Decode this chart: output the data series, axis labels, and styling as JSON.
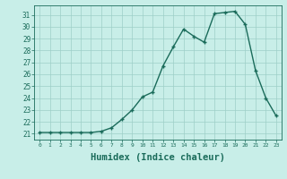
{
  "x": [
    0,
    1,
    2,
    3,
    4,
    5,
    6,
    7,
    8,
    9,
    10,
    11,
    12,
    13,
    14,
    15,
    16,
    17,
    18,
    19,
    20,
    21,
    22,
    23
  ],
  "y": [
    21.1,
    21.1,
    21.1,
    21.1,
    21.1,
    21.1,
    21.2,
    21.5,
    22.2,
    23.0,
    24.1,
    24.5,
    26.7,
    28.3,
    29.8,
    29.2,
    28.7,
    31.1,
    31.2,
    31.3,
    30.2,
    26.3,
    24.0,
    22.5
  ],
  "line_color": "#1a6b5a",
  "marker": "+",
  "marker_size": 3,
  "marker_color": "#1a6b5a",
  "bg_color": "#c8eee8",
  "grid_color": "#9ecfc8",
  "axis_color": "#1a6b5a",
  "xlabel": "Humidex (Indice chaleur)",
  "xlabel_fontsize": 7.5,
  "ylabel_ticks": [
    21,
    22,
    23,
    24,
    25,
    26,
    27,
    28,
    29,
    30,
    31
  ],
  "xtick_labels": [
    "0",
    "1",
    "2",
    "3",
    "4",
    "5",
    "6",
    "7",
    "8",
    "9",
    "10",
    "11",
    "12",
    "13",
    "14",
    "15",
    "16",
    "17",
    "18",
    "19",
    "20",
    "21",
    "22",
    "23"
  ],
  "ylim": [
    20.5,
    31.8
  ],
  "xlim": [
    -0.5,
    23.5
  ],
  "linewidth": 1.0
}
